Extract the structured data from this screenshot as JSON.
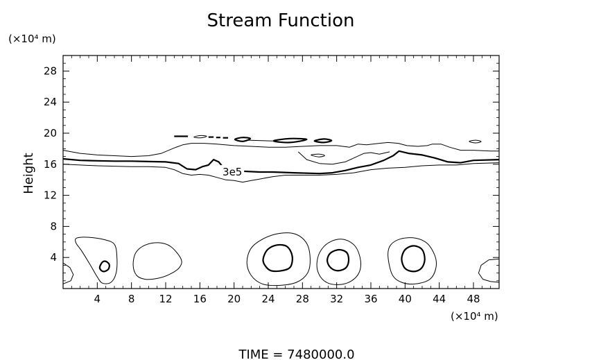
{
  "chart_data": {
    "type": "contour",
    "title": "Stream Function",
    "xlabel": "",
    "ylabel": "Height",
    "x_unit_label": "(×10⁴ m)",
    "y_unit_label": "(×10⁴ m)",
    "footer": "TIME  =  7480000.0",
    "xlim": [
      0,
      51
    ],
    "ylim": [
      0,
      30
    ],
    "x_ticks": [
      4,
      8,
      12,
      16,
      20,
      24,
      28,
      32,
      36,
      40,
      44,
      48
    ],
    "x_tick_labels": [
      "4",
      "8",
      "12",
      "16",
      "20",
      "24",
      "28",
      "32",
      "36",
      "40",
      "44",
      "48"
    ],
    "y_ticks": [
      4,
      8,
      12,
      16,
      20,
      24,
      28
    ],
    "y_tick_labels": [
      "4",
      "8",
      "12",
      "16",
      "20",
      "24",
      "28"
    ],
    "x_minor_step": 1,
    "y_minor_step": 1,
    "contour_label": "3e5",
    "contour_label_position": {
      "x": 19.8,
      "y": 15.0
    },
    "contours": [
      {
        "id": "upper-outer",
        "level": "outer",
        "weight": "thin",
        "closed": false,
        "points": [
          [
            0,
            17.8
          ],
          [
            2,
            17.4
          ],
          [
            4,
            17.2
          ],
          [
            6,
            17.1
          ],
          [
            8,
            17.0
          ],
          [
            10,
            17.1
          ],
          [
            11.5,
            17.4
          ],
          [
            13,
            18.1
          ],
          [
            14,
            18.5
          ],
          [
            15,
            18.7
          ],
          [
            16.5,
            18.7
          ],
          [
            18,
            18.6
          ],
          [
            20,
            18.4
          ],
          [
            22,
            18.3
          ],
          [
            24,
            18.2
          ],
          [
            26,
            18.2
          ],
          [
            28,
            18.3
          ],
          [
            30,
            18.4
          ],
          [
            32,
            18.4
          ],
          [
            33.5,
            18.2
          ],
          [
            34.5,
            18.6
          ],
          [
            35.5,
            18.5
          ],
          [
            37,
            18.7
          ],
          [
            38,
            18.8
          ],
          [
            39.2,
            18.7
          ],
          [
            40.2,
            18.4
          ],
          [
            41.5,
            18.3
          ],
          [
            42.6,
            18.4
          ],
          [
            43.2,
            18.6
          ],
          [
            44.2,
            18.6
          ],
          [
            45.2,
            18.2
          ],
          [
            46.5,
            17.8
          ],
          [
            48,
            17.8
          ],
          [
            50,
            17.7
          ],
          [
            51,
            17.7
          ]
        ]
      },
      {
        "id": "upper-bulge",
        "level": "outer",
        "weight": "thin",
        "closed": false,
        "points": [
          [
            27.5,
            17.6
          ],
          [
            28.5,
            16.6
          ],
          [
            30,
            16.1
          ],
          [
            31.5,
            16.0
          ],
          [
            33,
            16.3
          ],
          [
            34.2,
            16.9
          ],
          [
            35.2,
            17.4
          ],
          [
            36,
            17.5
          ],
          [
            37,
            17.3
          ],
          [
            38.2,
            17.6
          ]
        ]
      },
      {
        "id": "main-3e5",
        "level": "3e5",
        "weight": "thick",
        "closed": false,
        "points": [
          [
            0,
            16.7
          ],
          [
            2,
            16.5
          ],
          [
            4,
            16.45
          ],
          [
            6,
            16.4
          ],
          [
            8,
            16.4
          ],
          [
            10,
            16.35
          ],
          [
            12,
            16.3
          ],
          [
            13.5,
            16.1
          ],
          [
            14.5,
            15.4
          ],
          [
            15.5,
            15.3
          ],
          [
            16.3,
            15.7
          ],
          [
            17,
            15.9
          ],
          [
            17.6,
            16.6
          ],
          [
            18.2,
            16.3
          ],
          [
            18.8,
            15.5
          ],
          [
            19.2,
            15.2
          ],
          [
            23,
            15.0
          ],
          [
            24.5,
            15.0
          ],
          [
            27,
            14.9
          ],
          [
            30,
            14.8
          ],
          [
            31.5,
            14.9
          ],
          [
            33,
            15.2
          ],
          [
            34.5,
            15.6
          ],
          [
            36,
            15.9
          ],
          [
            37.5,
            16.5
          ],
          [
            38.6,
            17.1
          ],
          [
            39.3,
            17.7
          ],
          [
            40.4,
            17.4
          ],
          [
            42,
            17.2
          ],
          [
            43.5,
            16.8
          ],
          [
            45,
            16.3
          ],
          [
            46.5,
            16.2
          ],
          [
            48,
            16.5
          ],
          [
            51,
            16.6
          ]
        ]
      },
      {
        "id": "lower-outer",
        "level": "outer",
        "weight": "thin",
        "closed": false,
        "points": [
          [
            0,
            16.0
          ],
          [
            2,
            15.9
          ],
          [
            4,
            15.8
          ],
          [
            6,
            15.75
          ],
          [
            8,
            15.7
          ],
          [
            10,
            15.7
          ],
          [
            12,
            15.6
          ],
          [
            13,
            15.3
          ],
          [
            14,
            14.8
          ],
          [
            15,
            14.6
          ],
          [
            16,
            14.7
          ],
          [
            17,
            14.6
          ],
          [
            18,
            14.3
          ],
          [
            19,
            14.0
          ],
          [
            20,
            13.9
          ],
          [
            21,
            13.7
          ],
          [
            22,
            13.9
          ],
          [
            23,
            14.1
          ],
          [
            24.5,
            14.4
          ],
          [
            26,
            14.6
          ],
          [
            28,
            14.6
          ],
          [
            30,
            14.6
          ],
          [
            32,
            14.7
          ],
          [
            34,
            14.9
          ],
          [
            36,
            15.3
          ],
          [
            38,
            15.5
          ],
          [
            40,
            15.6
          ],
          [
            42,
            15.8
          ],
          [
            44,
            15.9
          ],
          [
            46,
            15.9
          ],
          [
            48,
            16.1
          ],
          [
            51,
            16.2
          ]
        ]
      },
      {
        "id": "fragment-1",
        "level": "outer",
        "weight": "thick",
        "closed": false,
        "points": [
          [
            13,
            19.6
          ],
          [
            14.6,
            19.6
          ]
        ]
      },
      {
        "id": "fragment-2",
        "level": "outer",
        "weight": "thin",
        "closed": true,
        "points": [
          [
            15.3,
            19.5
          ],
          [
            16.1,
            19.7
          ],
          [
            16.8,
            19.6
          ],
          [
            16.1,
            19.4
          ]
        ]
      },
      {
        "id": "fragment-3",
        "level": "outer",
        "weight": "thick",
        "closed": false,
        "points": [
          [
            17.0,
            19.5
          ],
          [
            17.6,
            19.5
          ]
        ]
      },
      {
        "id": "fragment-4",
        "level": "outer",
        "weight": "thick",
        "closed": false,
        "points": [
          [
            17.9,
            19.45
          ],
          [
            18.4,
            19.45
          ]
        ]
      },
      {
        "id": "fragment-5",
        "level": "outer",
        "weight": "thick",
        "closed": false,
        "points": [
          [
            18.7,
            19.4
          ],
          [
            19.3,
            19.4
          ]
        ]
      },
      {
        "id": "fragment-6",
        "level": "outer",
        "weight": "thick",
        "closed": true,
        "points": [
          [
            20.1,
            19.2
          ],
          [
            21.0,
            19.45
          ],
          [
            21.9,
            19.3
          ],
          [
            21.0,
            18.95
          ]
        ]
      },
      {
        "id": "fragment-7",
        "level": "outer",
        "weight": "thin",
        "closed": false,
        "points": [
          [
            21.6,
            19.1
          ],
          [
            24.5,
            19.0
          ]
        ]
      },
      {
        "id": "fragment-8",
        "level": "outer",
        "weight": "thick",
        "closed": true,
        "points": [
          [
            24.6,
            19.0
          ],
          [
            26.5,
            19.3
          ],
          [
            28.5,
            19.2
          ],
          [
            26.5,
            18.8
          ]
        ]
      },
      {
        "id": "fragment-9",
        "level": "outer",
        "weight": "thick",
        "closed": true,
        "points": [
          [
            29.4,
            19.0
          ],
          [
            30.5,
            19.25
          ],
          [
            31.4,
            19.05
          ],
          [
            30.5,
            18.8
          ]
        ]
      },
      {
        "id": "fragment-10",
        "level": "outer",
        "weight": "thin",
        "closed": true,
        "points": [
          [
            29.0,
            17.2
          ],
          [
            30.0,
            17.3
          ],
          [
            30.6,
            17.1
          ],
          [
            29.9,
            16.95
          ]
        ]
      },
      {
        "id": "fragment-11",
        "level": "outer",
        "weight": "thin",
        "closed": true,
        "points": [
          [
            47.5,
            18.95
          ],
          [
            48.3,
            19.1
          ],
          [
            48.9,
            18.9
          ],
          [
            48.2,
            18.75
          ]
        ]
      },
      {
        "id": "cell-a-outer",
        "level": "outer",
        "weight": "thin",
        "closed": true,
        "points": [
          [
            1.6,
            6.5
          ],
          [
            3,
            6.6
          ],
          [
            4.8,
            6.3
          ],
          [
            6.0,
            5.7
          ],
          [
            6.3,
            4.0
          ],
          [
            6.2,
            2.0
          ],
          [
            5.6,
            0.8
          ],
          [
            4.6,
            0.7
          ],
          [
            4.0,
            1.5
          ],
          [
            3.2,
            3.0
          ],
          [
            2.2,
            4.8
          ],
          [
            1.5,
            5.9
          ]
        ]
      },
      {
        "id": "cell-a-inner",
        "level": "inner",
        "weight": "thick",
        "closed": true,
        "points": [
          [
            4.3,
            2.8
          ],
          [
            4.6,
            3.4
          ],
          [
            5.0,
            3.5
          ],
          [
            5.4,
            3.1
          ],
          [
            5.3,
            2.5
          ],
          [
            4.8,
            2.2
          ],
          [
            4.4,
            2.4
          ]
        ]
      },
      {
        "id": "cell-b-outer",
        "level": "outer",
        "weight": "thin",
        "closed": true,
        "points": [
          [
            8.2,
            3.0
          ],
          [
            8.5,
            4.6
          ],
          [
            9.6,
            5.6
          ],
          [
            11.2,
            5.9
          ],
          [
            12.6,
            5.4
          ],
          [
            13.8,
            3.8
          ],
          [
            13.6,
            2.7
          ],
          [
            12.4,
            1.8
          ],
          [
            11.0,
            1.3
          ],
          [
            9.6,
            1.2
          ],
          [
            8.6,
            1.7
          ]
        ]
      },
      {
        "id": "cell-c-outer",
        "level": "outer",
        "weight": "thin",
        "closed": true,
        "points": [
          [
            21.5,
            3.4
          ],
          [
            22.0,
            5.2
          ],
          [
            23.4,
            6.4
          ],
          [
            25.3,
            7.1
          ],
          [
            27.2,
            7.0
          ],
          [
            28.5,
            5.8
          ],
          [
            28.9,
            3.8
          ],
          [
            28.6,
            2.0
          ],
          [
            27.3,
            0.8
          ],
          [
            25.2,
            0.4
          ],
          [
            23.3,
            0.6
          ],
          [
            22.0,
            1.7
          ]
        ]
      },
      {
        "id": "cell-c-inner",
        "level": "inner",
        "weight": "thick",
        "closed": true,
        "points": [
          [
            23.4,
            3.8
          ],
          [
            23.9,
            5.0
          ],
          [
            25.0,
            5.6
          ],
          [
            26.2,
            5.4
          ],
          [
            26.8,
            4.2
          ],
          [
            26.6,
            2.8
          ],
          [
            25.6,
            2.3
          ],
          [
            24.3,
            2.3
          ],
          [
            23.6,
            3.0
          ]
        ]
      },
      {
        "id": "cell-d-outer",
        "level": "outer",
        "weight": "thin",
        "closed": true,
        "points": [
          [
            29.7,
            3.4
          ],
          [
            30.2,
            5.0
          ],
          [
            31.4,
            6.1
          ],
          [
            32.9,
            6.3
          ],
          [
            34.2,
            5.4
          ],
          [
            34.8,
            3.6
          ],
          [
            34.6,
            2.0
          ],
          [
            33.6,
            0.9
          ],
          [
            32.2,
            0.5
          ],
          [
            30.8,
            0.8
          ],
          [
            29.9,
            1.9
          ]
        ]
      },
      {
        "id": "cell-d-inner",
        "level": "inner",
        "weight": "thick",
        "closed": true,
        "points": [
          [
            30.9,
            3.7
          ],
          [
            31.3,
            4.6
          ],
          [
            32.3,
            5.0
          ],
          [
            33.2,
            4.6
          ],
          [
            33.4,
            3.5
          ],
          [
            33.0,
            2.6
          ],
          [
            32.0,
            2.3
          ],
          [
            31.2,
            2.8
          ]
        ]
      },
      {
        "id": "cell-e-outer",
        "level": "outer",
        "weight": "thin",
        "closed": true,
        "points": [
          [
            38.0,
            4.2
          ],
          [
            38.3,
            5.6
          ],
          [
            39.5,
            6.4
          ],
          [
            41.2,
            6.5
          ],
          [
            42.6,
            5.8
          ],
          [
            43.5,
            4.2
          ],
          [
            43.6,
            2.6
          ],
          [
            42.9,
            1.2
          ],
          [
            41.2,
            0.6
          ],
          [
            39.6,
            0.8
          ],
          [
            38.5,
            1.8
          ]
        ]
      },
      {
        "id": "cell-e-inner",
        "level": "inner",
        "weight": "thick",
        "closed": true,
        "points": [
          [
            39.6,
            3.8
          ],
          [
            40.0,
            5.0
          ],
          [
            41.0,
            5.5
          ],
          [
            42.0,
            5.0
          ],
          [
            42.3,
            3.7
          ],
          [
            41.9,
            2.6
          ],
          [
            41.0,
            2.2
          ],
          [
            40.0,
            2.6
          ]
        ]
      },
      {
        "id": "cell-f-outer",
        "level": "outer",
        "weight": "thin",
        "closed": false,
        "points": [
          [
            51.0,
            3.8
          ],
          [
            49.8,
            3.7
          ],
          [
            48.9,
            3.0
          ],
          [
            48.6,
            2.0
          ],
          [
            49.1,
            1.2
          ],
          [
            50.0,
            0.9
          ],
          [
            51.0,
            0.8
          ]
        ]
      },
      {
        "id": "cell-g-outer",
        "level": "outer",
        "weight": "thin",
        "closed": false,
        "points": [
          [
            0,
            3.3
          ],
          [
            0.8,
            2.7
          ],
          [
            1.2,
            1.8
          ],
          [
            0.9,
            1.0
          ],
          [
            0,
            0.6
          ]
        ]
      }
    ]
  }
}
